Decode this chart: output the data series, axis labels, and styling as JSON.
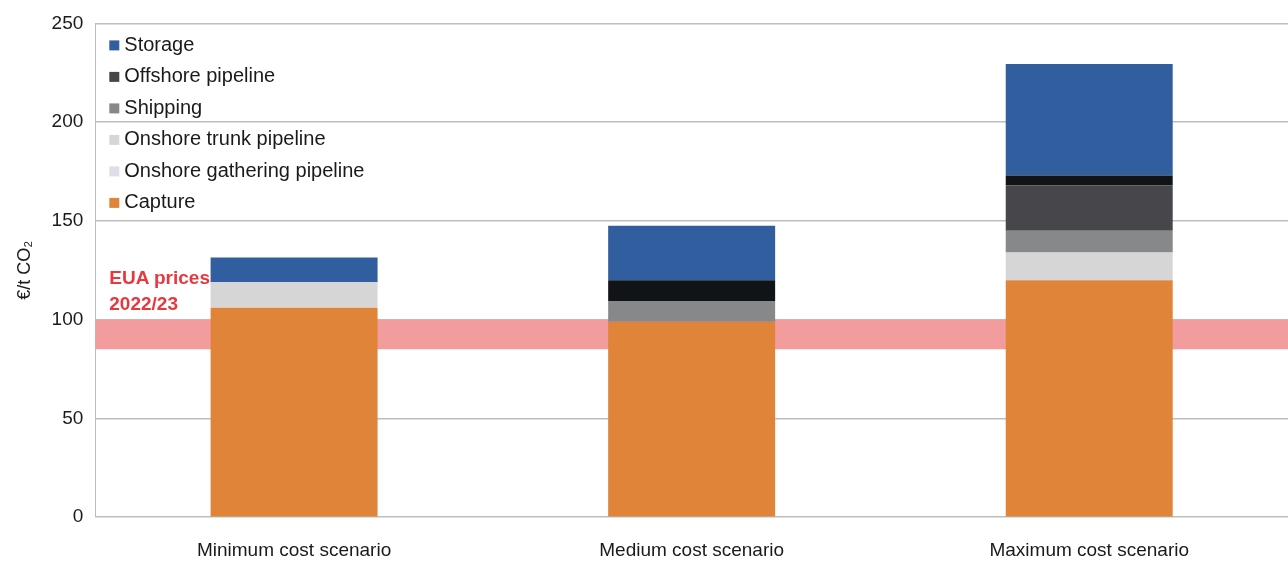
{
  "chart_data": {
    "type": "bar",
    "stacked": true,
    "ylabel": "€/t CO₂",
    "categories": [
      "Minimum cost scenario",
      "Medium cost scenario",
      "Maximum cost scenario"
    ],
    "series": [
      {
        "name": "Capture",
        "color": "#e0843a",
        "values": [
          106,
          99,
          120
        ]
      },
      {
        "name": "Onshore gathering pipeline",
        "color": "#dcdfea",
        "values": [
          null,
          null,
          null
        ]
      },
      {
        "name": "Onshore trunk pipeline",
        "color": "#d6d6d6",
        "values": [
          13,
          null,
          14
        ]
      },
      {
        "name": "Shipping",
        "color": "#878889",
        "values": [
          null,
          10.5,
          11
        ]
      },
      {
        "name": "Offshore pipeline",
        "color": "#47464b",
        "values": [
          null,
          null,
          23
        ]
      },
      {
        "color": "#111416",
        "values": [
          null,
          10.5,
          5
        ]
      },
      {
        "name": "Storage",
        "color": "#315e9f",
        "values": [
          12.5,
          27.5,
          56.5
        ]
      }
    ],
    "ylim": [
      0,
      250
    ],
    "yticks": [
      0,
      50,
      100,
      150,
      200,
      250
    ],
    "grid": "y",
    "legend": "top left",
    "bands": [
      {
        "axis": "y",
        "from": 85,
        "to": 100,
        "color": "#f39c9e",
        "label": "EUA prices\n2022/23"
      }
    ]
  }
}
